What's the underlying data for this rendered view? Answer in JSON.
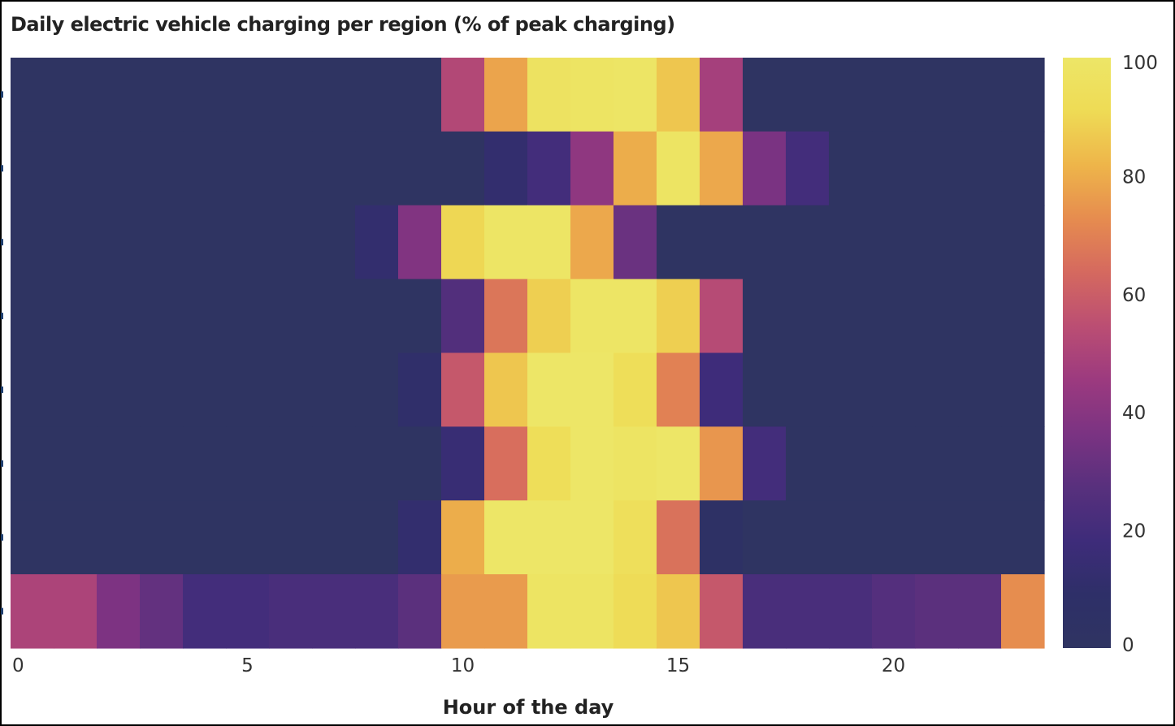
{
  "chart_data": {
    "type": "heatmap",
    "title": "Daily electric vehicle charging per region (% of peak charging)",
    "xlabel": "Hour of the day",
    "ylabel": "",
    "x": [
      0,
      1,
      2,
      3,
      4,
      5,
      6,
      7,
      8,
      9,
      10,
      11,
      12,
      13,
      14,
      15,
      16,
      17,
      18,
      19,
      20,
      21,
      22,
      23
    ],
    "x_ticks": [
      0,
      5,
      10,
      15,
      20
    ],
    "rows": 8,
    "colorbar": {
      "min": 0,
      "max": 100,
      "ticks": [
        0,
        20,
        40,
        60,
        80,
        100
      ]
    },
    "colormap": [
      "#2f3462",
      "#2e2f68",
      "#3e2c7a",
      "#58307d",
      "#7b3382",
      "#9c3a7f",
      "#bb4e73",
      "#d5695f",
      "#e68c4f",
      "#eeb54a",
      "#eedb55",
      "#ede667"
    ],
    "values": [
      [
        0,
        0,
        0,
        0,
        0,
        0,
        0,
        0,
        0,
        0,
        52,
        78,
        97,
        98,
        99,
        86,
        48,
        0,
        0,
        0,
        0,
        0,
        0,
        0
      ],
      [
        0,
        0,
        0,
        0,
        0,
        0,
        0,
        0,
        0,
        0,
        0,
        12,
        20,
        42,
        80,
        98,
        79,
        36,
        20,
        0,
        0,
        0,
        0,
        0
      ],
      [
        0,
        0,
        0,
        0,
        0,
        0,
        0,
        0,
        12,
        38,
        90,
        99,
        99,
        79,
        32,
        0,
        0,
        0,
        0,
        0,
        0,
        0,
        0,
        0
      ],
      [
        0,
        0,
        0,
        0,
        0,
        0,
        0,
        0,
        0,
        0,
        25,
        67,
        88,
        99,
        99,
        88,
        53,
        0,
        0,
        0,
        0,
        0,
        0,
        0
      ],
      [
        0,
        0,
        0,
        0,
        0,
        0,
        0,
        0,
        0,
        10,
        58,
        86,
        100,
        100,
        93,
        70,
        18,
        0,
        0,
        0,
        0,
        0,
        0,
        0
      ],
      [
        0,
        0,
        0,
        0,
        0,
        0,
        0,
        0,
        0,
        0,
        15,
        65,
        93,
        100,
        98,
        100,
        75,
        20,
        0,
        0,
        0,
        0,
        0,
        0
      ],
      [
        0,
        0,
        0,
        0,
        0,
        0,
        0,
        0,
        0,
        12,
        80,
        100,
        100,
        100,
        94,
        66,
        5,
        0,
        0,
        0,
        0,
        0,
        0,
        0
      ],
      [
        50,
        50,
        37,
        30,
        20,
        20,
        22,
        22,
        22,
        28,
        76,
        76,
        98,
        98,
        92,
        86,
        58,
        22,
        22,
        22,
        26,
        28,
        28,
        73
      ]
    ]
  }
}
